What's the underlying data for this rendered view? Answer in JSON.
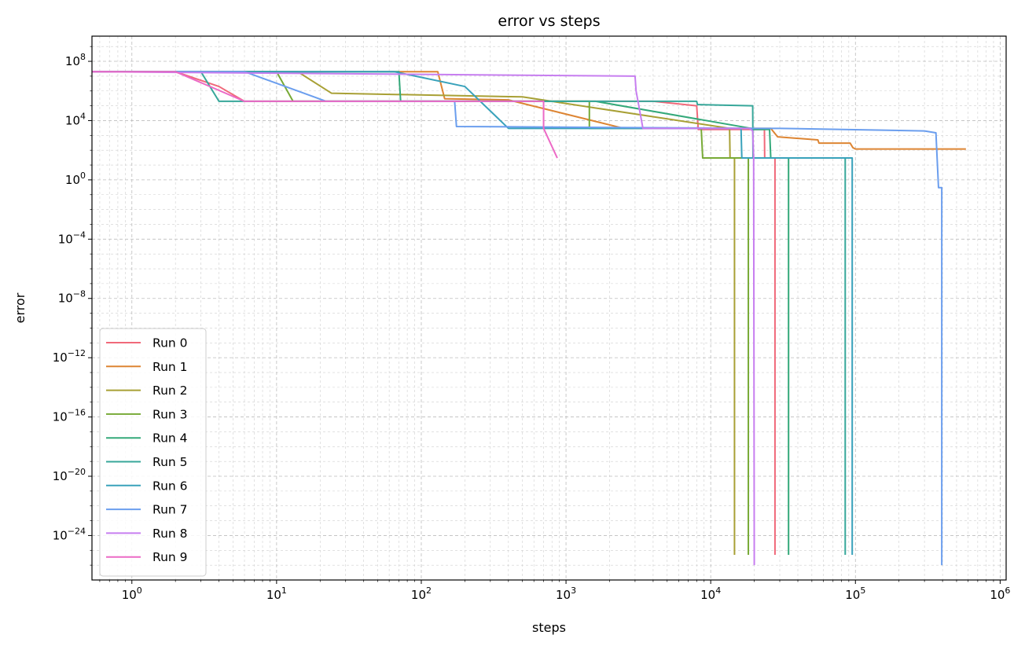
{
  "chart_data": {
    "type": "line",
    "title": "error vs steps",
    "xlabel": "steps",
    "ylabel": "error",
    "xscale": "log",
    "yscale": "log",
    "xlim": [
      0.53,
      1100000.0
    ],
    "ylim": [
      1e-27,
      5000000000.0
    ],
    "xticks": [
      {
        "value": 1,
        "base": "10",
        "exp": "0"
      },
      {
        "value": 10,
        "base": "10",
        "exp": "1"
      },
      {
        "value": 100,
        "base": "10",
        "exp": "2"
      },
      {
        "value": 1000,
        "base": "10",
        "exp": "3"
      },
      {
        "value": 10000,
        "base": "10",
        "exp": "4"
      },
      {
        "value": 100000,
        "base": "10",
        "exp": "5"
      },
      {
        "value": 1000000,
        "base": "10",
        "exp": "6"
      }
    ],
    "yticks": [
      {
        "value": 100000000.0,
        "base": "10",
        "exp": "8"
      },
      {
        "value": 10000.0,
        "base": "10",
        "exp": "4"
      },
      {
        "value": 1,
        "base": "10",
        "exp": "0"
      },
      {
        "value": 0.0001,
        "base": "10",
        "exp": "−4"
      },
      {
        "value": 1e-08,
        "base": "10",
        "exp": "−8"
      },
      {
        "value": 1e-12,
        "base": "10",
        "exp": "−12"
      },
      {
        "value": 1e-16,
        "base": "10",
        "exp": "−16"
      },
      {
        "value": 1e-20,
        "base": "10",
        "exp": "−20"
      },
      {
        "value": 1e-24,
        "base": "10",
        "exp": "−24"
      }
    ],
    "grid": true,
    "legend_position": "lower-left",
    "series": [
      {
        "name": "Run 0",
        "color": "#f0697a",
        "points": [
          [
            0.53,
            20000000.0
          ],
          [
            2,
            20000000.0
          ],
          [
            4,
            2000000.0
          ],
          [
            6,
            200000.0
          ],
          [
            4000,
            200000.0
          ],
          [
            8000,
            100000.0
          ],
          [
            8200,
            2500.0
          ],
          [
            23500,
            2500.0
          ],
          [
            23600,
            30
          ],
          [
            27800,
            30
          ],
          [
            27800,
            5e-26
          ]
        ]
      },
      {
        "name": "Run 1",
        "color": "#dd8533",
        "points": [
          [
            0.53,
            20000000.0
          ],
          [
            130,
            20000000.0
          ],
          [
            145,
            300000.0
          ],
          [
            400,
            250000.0
          ],
          [
            2500,
            3000.0
          ],
          [
            26000,
            3000.0
          ],
          [
            29000,
            800
          ],
          [
            55000,
            500
          ],
          [
            56000,
            300
          ],
          [
            92000,
            300
          ],
          [
            96000,
            150
          ],
          [
            100000,
            120
          ],
          [
            580000,
            120
          ]
        ]
      },
      {
        "name": "Run 2",
        "color": "#a8a035",
        "points": [
          [
            0.53,
            20000000.0
          ],
          [
            14,
            20000000.0
          ],
          [
            24,
            700000.0
          ],
          [
            500,
            400000.0
          ],
          [
            13500,
            3000.0
          ],
          [
            13600,
            30
          ],
          [
            14600,
            30
          ],
          [
            14600,
            5e-26
          ]
        ]
      },
      {
        "name": "Run 3",
        "color": "#77aa36",
        "points": [
          [
            0.53,
            20000000.0
          ],
          [
            10,
            20000000.0
          ],
          [
            13,
            200000.0
          ],
          [
            1450,
            200000.0
          ],
          [
            1450,
            3000.0
          ],
          [
            8600,
            3000.0
          ],
          [
            8800,
            30
          ],
          [
            18200,
            30
          ],
          [
            18200,
            5e-26
          ]
        ]
      },
      {
        "name": "Run 4",
        "color": "#34a97a",
        "points": [
          [
            0.53,
            20000000.0
          ],
          [
            70,
            20000000.0
          ],
          [
            72,
            200000.0
          ],
          [
            1600,
            200000.0
          ],
          [
            19000,
            3000.0
          ],
          [
            19500,
            2500.0
          ],
          [
            25500,
            2500.0
          ],
          [
            26000,
            30
          ],
          [
            34500,
            30
          ],
          [
            34500,
            5e-26
          ]
        ]
      },
      {
        "name": "Run 5",
        "color": "#37a79a",
        "points": [
          [
            0.53,
            20000000.0
          ],
          [
            3,
            20000000.0
          ],
          [
            4,
            200000.0
          ],
          [
            8000,
            200000.0
          ],
          [
            8100,
            120000.0
          ],
          [
            19500,
            100000.0
          ],
          [
            19600,
            30
          ],
          [
            85000,
            30
          ],
          [
            85000,
            5e-26
          ]
        ]
      },
      {
        "name": "Run 6",
        "color": "#39a2bb",
        "points": [
          [
            0.53,
            20000000.0
          ],
          [
            65,
            20000000.0
          ],
          [
            200,
            2000000.0
          ],
          [
            400,
            3000.0
          ],
          [
            16200,
            3000.0
          ],
          [
            16400,
            30
          ],
          [
            95000,
            30
          ],
          [
            95000,
            5e-26
          ]
        ]
      },
      {
        "name": "Run 7",
        "color": "#6b9eee",
        "points": [
          [
            0.53,
            20000000.0
          ],
          [
            6,
            20000000.0
          ],
          [
            22,
            200000.0
          ],
          [
            170,
            200000.0
          ],
          [
            175,
            4000.0
          ],
          [
            20000,
            3000.0
          ],
          [
            30000,
            3000.0
          ],
          [
            300000,
            2000.0
          ],
          [
            360000,
            1500.0
          ],
          [
            375000,
            0.3
          ],
          [
            395000,
            0.3
          ],
          [
            395000,
            1e-26
          ]
        ]
      },
      {
        "name": "Run 8",
        "color": "#c77ef0",
        "points": [
          [
            0.53,
            20000000.0
          ],
          [
            3000,
            10000000.0
          ],
          [
            3050,
            1000000.0
          ],
          [
            3400,
            3000.0
          ],
          [
            18500,
            3000.0
          ],
          [
            19500,
            2000.0
          ],
          [
            19800,
            30
          ],
          [
            20000,
            1e-26
          ]
        ]
      },
      {
        "name": "Run 9",
        "color": "#ec6ac6",
        "points": [
          [
            0.53,
            20000000.0
          ],
          [
            2,
            20000000.0
          ],
          [
            6,
            200000.0
          ],
          [
            700,
            200000.0
          ],
          [
            700,
            3000.0
          ],
          [
            870,
            30
          ]
        ]
      }
    ]
  }
}
